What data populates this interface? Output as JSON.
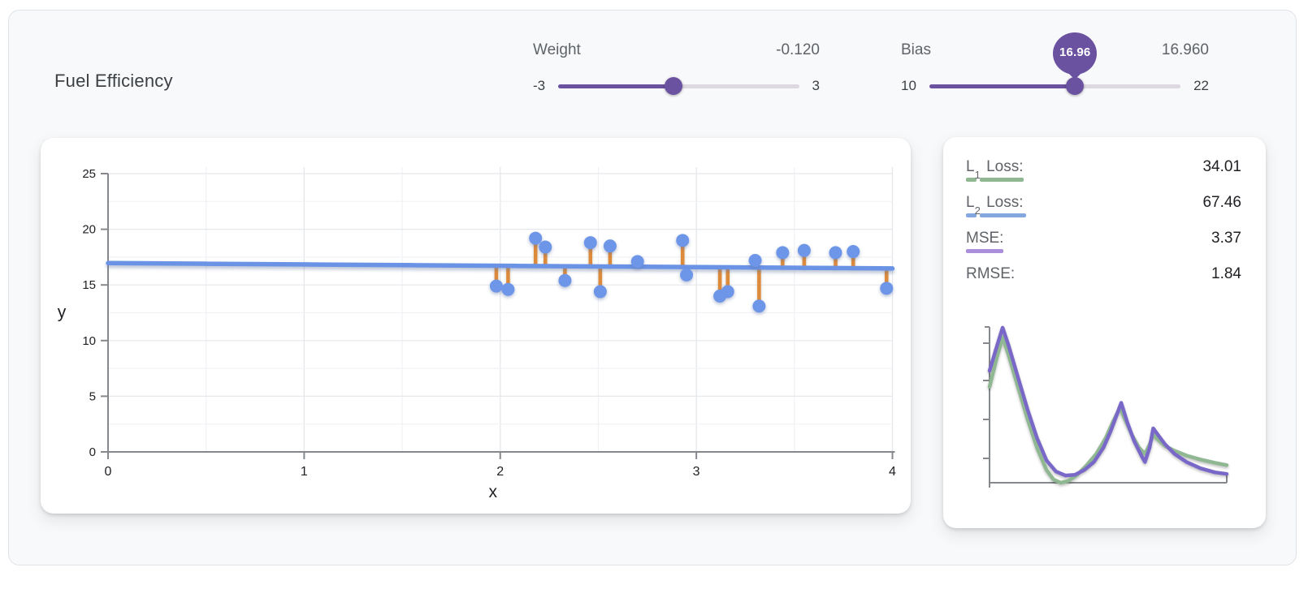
{
  "title": "Fuel Efficiency",
  "sliders": {
    "weight": {
      "label": "Weight",
      "value_display": "-0.120",
      "value": -0.12,
      "min": -3,
      "max": 3,
      "min_label": "-3",
      "max_label": "3"
    },
    "bias": {
      "label": "Bias",
      "value_display": "16.960",
      "value": 16.96,
      "min": 10,
      "max": 22,
      "min_label": "10",
      "max_label": "22",
      "tooltip": "16.96"
    }
  },
  "colors": {
    "accent_purple": "#6b52a1",
    "point_blue": "#6e96e8",
    "line_blue": "#6a93e6",
    "residual_orange": "#dd8a3b",
    "loss_green": "#8fb791",
    "loss_purple": "#7a68c9",
    "axis_gray": "#85898e"
  },
  "metrics": [
    {
      "label_main": "L",
      "label_sub": "1",
      "label_rest": " Loss:",
      "value": "34.01",
      "underline_color": "#8fb791",
      "underline_segments": [
        13,
        54
      ]
    },
    {
      "label_main": "L",
      "label_sub": "2",
      "label_rest": " Loss:",
      "value": "67.46",
      "underline_color": "#84a7e0",
      "underline_segments": [
        13,
        57
      ]
    },
    {
      "label_main": "MSE:",
      "label_sub": "",
      "label_rest": "",
      "value": "3.37",
      "underline_color": "#ab8fdb",
      "underline_segments": [
        46
      ]
    },
    {
      "label_main": "RMSE:",
      "label_sub": "",
      "label_rest": "",
      "value": "1.84",
      "underline_color": "",
      "underline_segments": []
    }
  ],
  "chart_data": [
    {
      "type": "scatter",
      "title": "",
      "xlabel": "x",
      "ylabel": "y",
      "xlim": [
        0,
        4
      ],
      "ylim": [
        0,
        25
      ],
      "x_ticks": [
        0,
        1,
        2,
        3,
        4
      ],
      "y_ticks": [
        0,
        5,
        10,
        15,
        20,
        25
      ],
      "grid": true,
      "points": [
        [
          1.98,
          14.9
        ],
        [
          2.04,
          14.6
        ],
        [
          2.18,
          19.2
        ],
        [
          2.23,
          18.4
        ],
        [
          2.33,
          15.4
        ],
        [
          2.46,
          18.8
        ],
        [
          2.51,
          14.4
        ],
        [
          2.56,
          18.5
        ],
        [
          2.7,
          17.1
        ],
        [
          2.93,
          19.0
        ],
        [
          2.95,
          15.9
        ],
        [
          3.12,
          14.0
        ],
        [
          3.16,
          14.4
        ],
        [
          3.3,
          17.2
        ],
        [
          3.32,
          13.1
        ],
        [
          3.44,
          17.9
        ],
        [
          3.55,
          18.1
        ],
        [
          3.71,
          17.9
        ],
        [
          3.8,
          18.0
        ],
        [
          3.97,
          14.7
        ]
      ],
      "fit_line": {
        "weight": -0.12,
        "bias": 16.96,
        "x_range": [
          0,
          4
        ]
      },
      "residuals_shown": true
    },
    {
      "type": "line",
      "title": "loss curves (unlabeled axes)",
      "xlim": [
        0,
        1
      ],
      "ylim": [
        0,
        1
      ],
      "legend": "none",
      "series": [
        {
          "name": "L1-loss-history",
          "color": "#8fb791",
          "points": [
            [
              0,
              0.6
            ],
            [
              0.03,
              0.78
            ],
            [
              0.055,
              0.91
            ],
            [
              0.08,
              0.8
            ],
            [
              0.12,
              0.6
            ],
            [
              0.16,
              0.4
            ],
            [
              0.2,
              0.22
            ],
            [
              0.24,
              0.08
            ],
            [
              0.27,
              0.02
            ],
            [
              0.3,
              0.0
            ],
            [
              0.33,
              0.01
            ],
            [
              0.37,
              0.05
            ],
            [
              0.41,
              0.11
            ],
            [
              0.45,
              0.18
            ],
            [
              0.49,
              0.28
            ],
            [
              0.52,
              0.38
            ],
            [
              0.55,
              0.47
            ],
            [
              0.57,
              0.4
            ],
            [
              0.6,
              0.3
            ],
            [
              0.63,
              0.22
            ],
            [
              0.655,
              0.18
            ],
            [
              0.675,
              0.24
            ],
            [
              0.69,
              0.3
            ],
            [
              0.71,
              0.27
            ],
            [
              0.74,
              0.23
            ],
            [
              0.78,
              0.2
            ],
            [
              0.83,
              0.17
            ],
            [
              0.89,
              0.145
            ],
            [
              0.95,
              0.125
            ],
            [
              1.0,
              0.11
            ]
          ]
        },
        {
          "name": "MSE-history",
          "color": "#7a68c9",
          "points": [
            [
              0,
              0.7
            ],
            [
              0.03,
              0.85
            ],
            [
              0.055,
              0.97
            ],
            [
              0.08,
              0.86
            ],
            [
              0.12,
              0.66
            ],
            [
              0.16,
              0.46
            ],
            [
              0.2,
              0.28
            ],
            [
              0.24,
              0.14
            ],
            [
              0.28,
              0.07
            ],
            [
              0.32,
              0.045
            ],
            [
              0.36,
              0.05
            ],
            [
              0.4,
              0.08
            ],
            [
              0.44,
              0.13
            ],
            [
              0.48,
              0.22
            ],
            [
              0.51,
              0.32
            ],
            [
              0.54,
              0.44
            ],
            [
              0.555,
              0.5
            ],
            [
              0.58,
              0.38
            ],
            [
              0.61,
              0.26
            ],
            [
              0.64,
              0.17
            ],
            [
              0.655,
              0.13
            ],
            [
              0.675,
              0.22
            ],
            [
              0.69,
              0.34
            ],
            [
              0.71,
              0.3
            ],
            [
              0.74,
              0.24
            ],
            [
              0.78,
              0.18
            ],
            [
              0.83,
              0.13
            ],
            [
              0.89,
              0.09
            ],
            [
              0.95,
              0.065
            ],
            [
              1.0,
              0.055
            ]
          ]
        }
      ]
    }
  ]
}
